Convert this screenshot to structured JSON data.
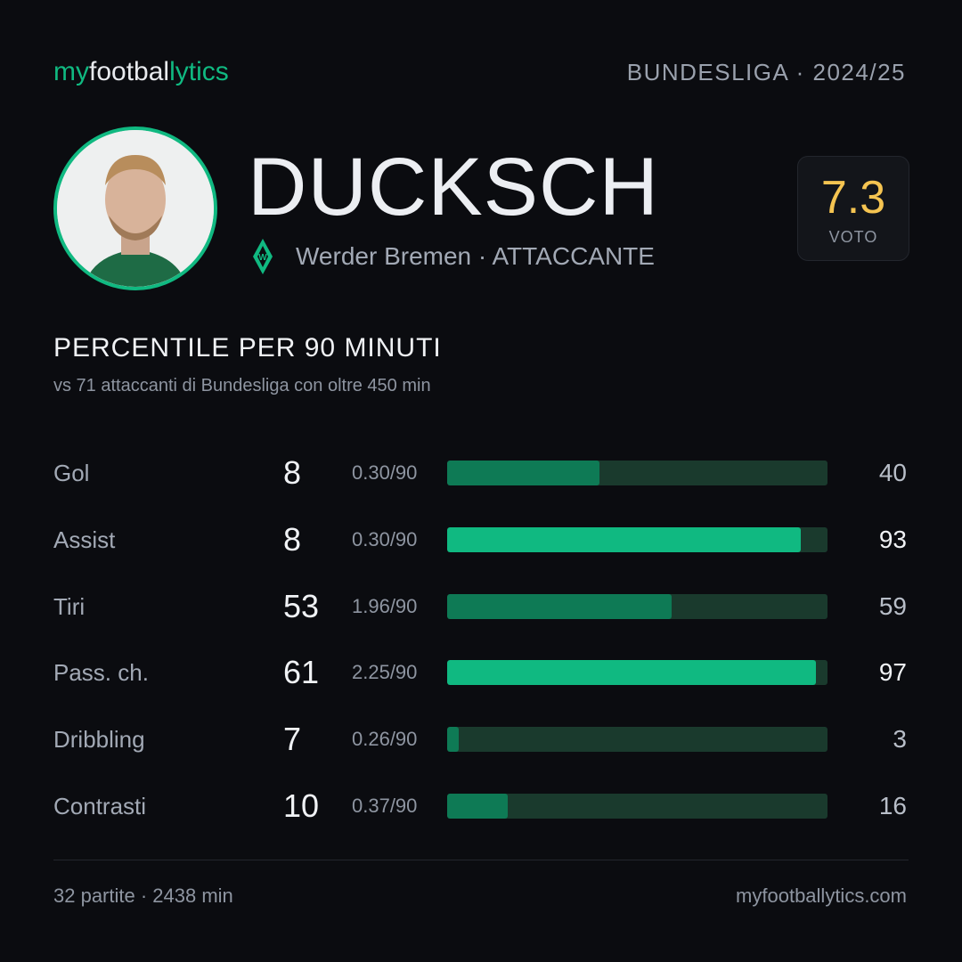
{
  "header": {
    "brand_parts": [
      "my",
      "footbal",
      "lytics"
    ],
    "league": "BUNDESLIGA · 2024/25"
  },
  "player": {
    "name": "DUCKSCH",
    "meta": "Werder Bremen · ATTACCANTE",
    "rating": "7.3",
    "rating_label": "VOTO"
  },
  "section": {
    "title": "PERCENTILE PER 90 MINUTI",
    "subtitle": "vs 71 attaccanti di Bundesliga con oltre 450 min"
  },
  "rows": [
    {
      "label": "Gol",
      "total": "8",
      "per90": "0.30/90",
      "percentile": 40,
      "color": "#0e7a55"
    },
    {
      "label": "Assist",
      "total": "8",
      "per90": "0.30/90",
      "percentile": 93,
      "color": "#10b981"
    },
    {
      "label": "Tiri",
      "total": "53",
      "per90": "1.96/90",
      "percentile": 59,
      "color": "#0e7a55"
    },
    {
      "label": "Pass. ch.",
      "total": "61",
      "per90": "2.25/90",
      "percentile": 97,
      "color": "#10b981"
    },
    {
      "label": "Dribbling",
      "total": "7",
      "per90": "0.26/90",
      "percentile": 3,
      "color": "#0e7a55"
    },
    {
      "label": "Contrasti",
      "total": "10",
      "per90": "0.37/90",
      "percentile": 16,
      "color": "#0e7a55"
    }
  ],
  "footer": {
    "left": "32 partite · 2438 min",
    "right": "myfootballytics.com"
  }
}
